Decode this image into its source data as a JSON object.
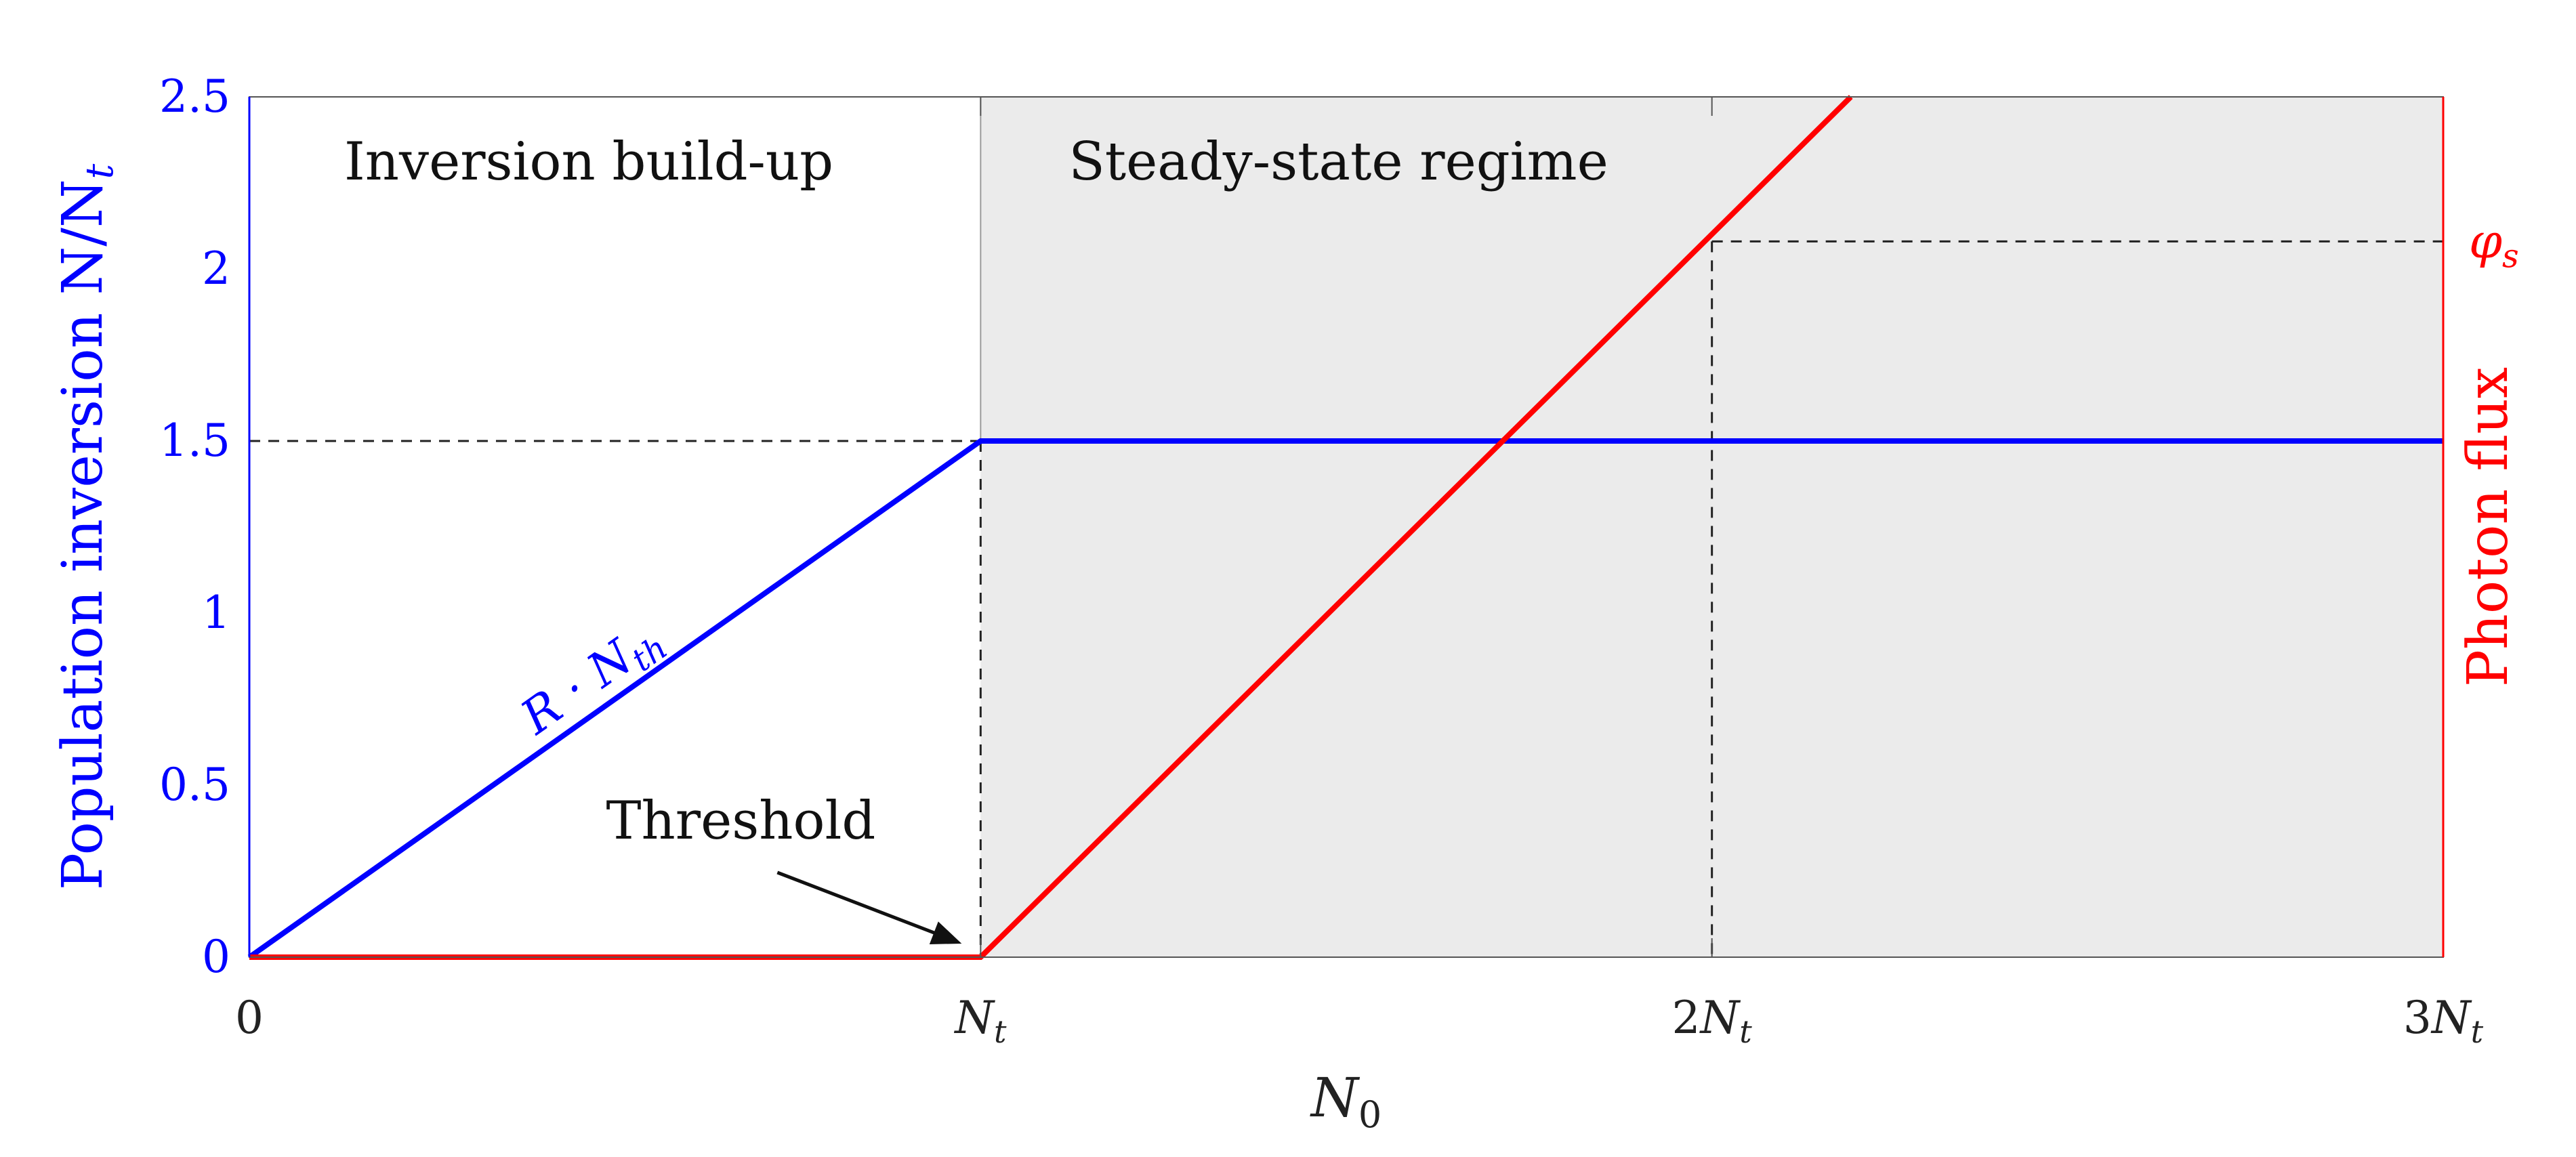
{
  "chart_data": {
    "type": "line",
    "title": "",
    "xlabel_main": "N",
    "xlabel_sub": "0",
    "ylabel_left_text": "Population inversion N/N",
    "ylabel_left_sub": "t",
    "ylabel_right": "Photon flux",
    "x_unit": "N_t",
    "xlim": [
      0,
      3
    ],
    "ylim": [
      0,
      2.5
    ],
    "x_ticks": [
      {
        "value": 0,
        "coef": "0",
        "sym": "",
        "sub": ""
      },
      {
        "value": 1,
        "coef": "",
        "sym": "N",
        "sub": "t"
      },
      {
        "value": 2,
        "coef": "2",
        "sym": "N",
        "sub": "t"
      },
      {
        "value": 3,
        "coef": "3",
        "sym": "N",
        "sub": "t"
      }
    ],
    "y_ticks": [
      {
        "value": 0,
        "label": "0"
      },
      {
        "value": 0.5,
        "label": "0.5"
      },
      {
        "value": 1,
        "label": "1"
      },
      {
        "value": 1.5,
        "label": "1.5"
      },
      {
        "value": 2,
        "label": "2"
      },
      {
        "value": 2.5,
        "label": "2.5"
      }
    ],
    "regions": [
      {
        "label": "Inversion build-up",
        "x_range": [
          0,
          1
        ],
        "shaded": false,
        "color": "#ffffff"
      },
      {
        "label": "Steady-state regime",
        "x_range": [
          1,
          3
        ],
        "shaded": true,
        "color": "#ebebeb"
      }
    ],
    "series": [
      {
        "role": "population_inversion",
        "color": "#0000ff",
        "points": [
          [
            0,
            0
          ],
          [
            1,
            1.5
          ],
          [
            3,
            1.5
          ]
        ]
      },
      {
        "role": "photon_flux",
        "color": "#ff0000",
        "points": [
          [
            0,
            0
          ],
          [
            1,
            0
          ],
          [
            2.19,
            2.5
          ]
        ]
      }
    ],
    "annotations": {
      "threshold": {
        "text": "Threshold",
        "x": 1,
        "y": 0
      },
      "slope_label": {
        "main": "R · N",
        "sub": "th"
      },
      "phi_s": {
        "main": "φ",
        "sub": "s",
        "y": 2.08
      },
      "saturation_x": 2,
      "inversion_level": 1.5
    }
  }
}
